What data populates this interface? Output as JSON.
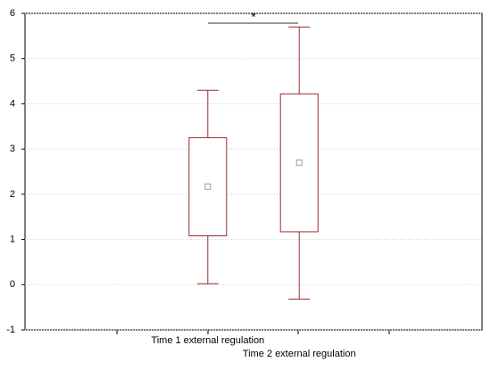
{
  "chart_data": {
    "type": "box",
    "categories": [
      "Time 1 external regulation",
      "Time 2 external regulation"
    ],
    "boxes": [
      {
        "min": 0.02,
        "q1": 1.08,
        "mean": 2.17,
        "q3": 3.25,
        "max": 4.3
      },
      {
        "min": -0.32,
        "q1": 1.17,
        "mean": 2.7,
        "q3": 4.22,
        "max": 5.7
      }
    ],
    "color": "#9b2a2a",
    "ylim": [
      -1,
      6
    ],
    "yticks": [
      -1,
      0,
      1,
      2,
      3,
      4,
      5,
      6
    ],
    "grid": true,
    "annotation": "*"
  }
}
